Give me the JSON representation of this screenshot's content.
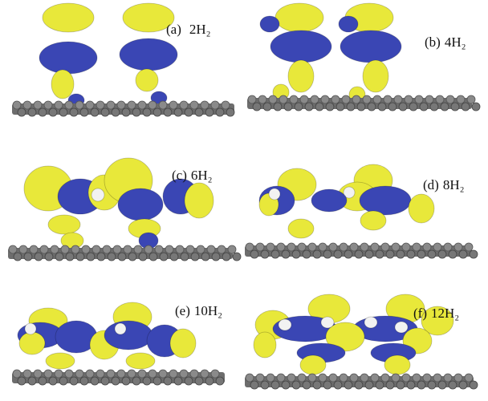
{
  "panels": [
    {
      "tag": "(a)",
      "label": "2H₂"
    },
    {
      "tag": "(b)",
      "label": "4H₂"
    },
    {
      "tag": "(c)",
      "label": "6H₂"
    },
    {
      "tag": "(d)",
      "label": "8H₂"
    },
    {
      "tag": "(e)",
      "label": "10H₂"
    },
    {
      "tag": "(f)",
      "label": "12H₂"
    }
  ]
}
